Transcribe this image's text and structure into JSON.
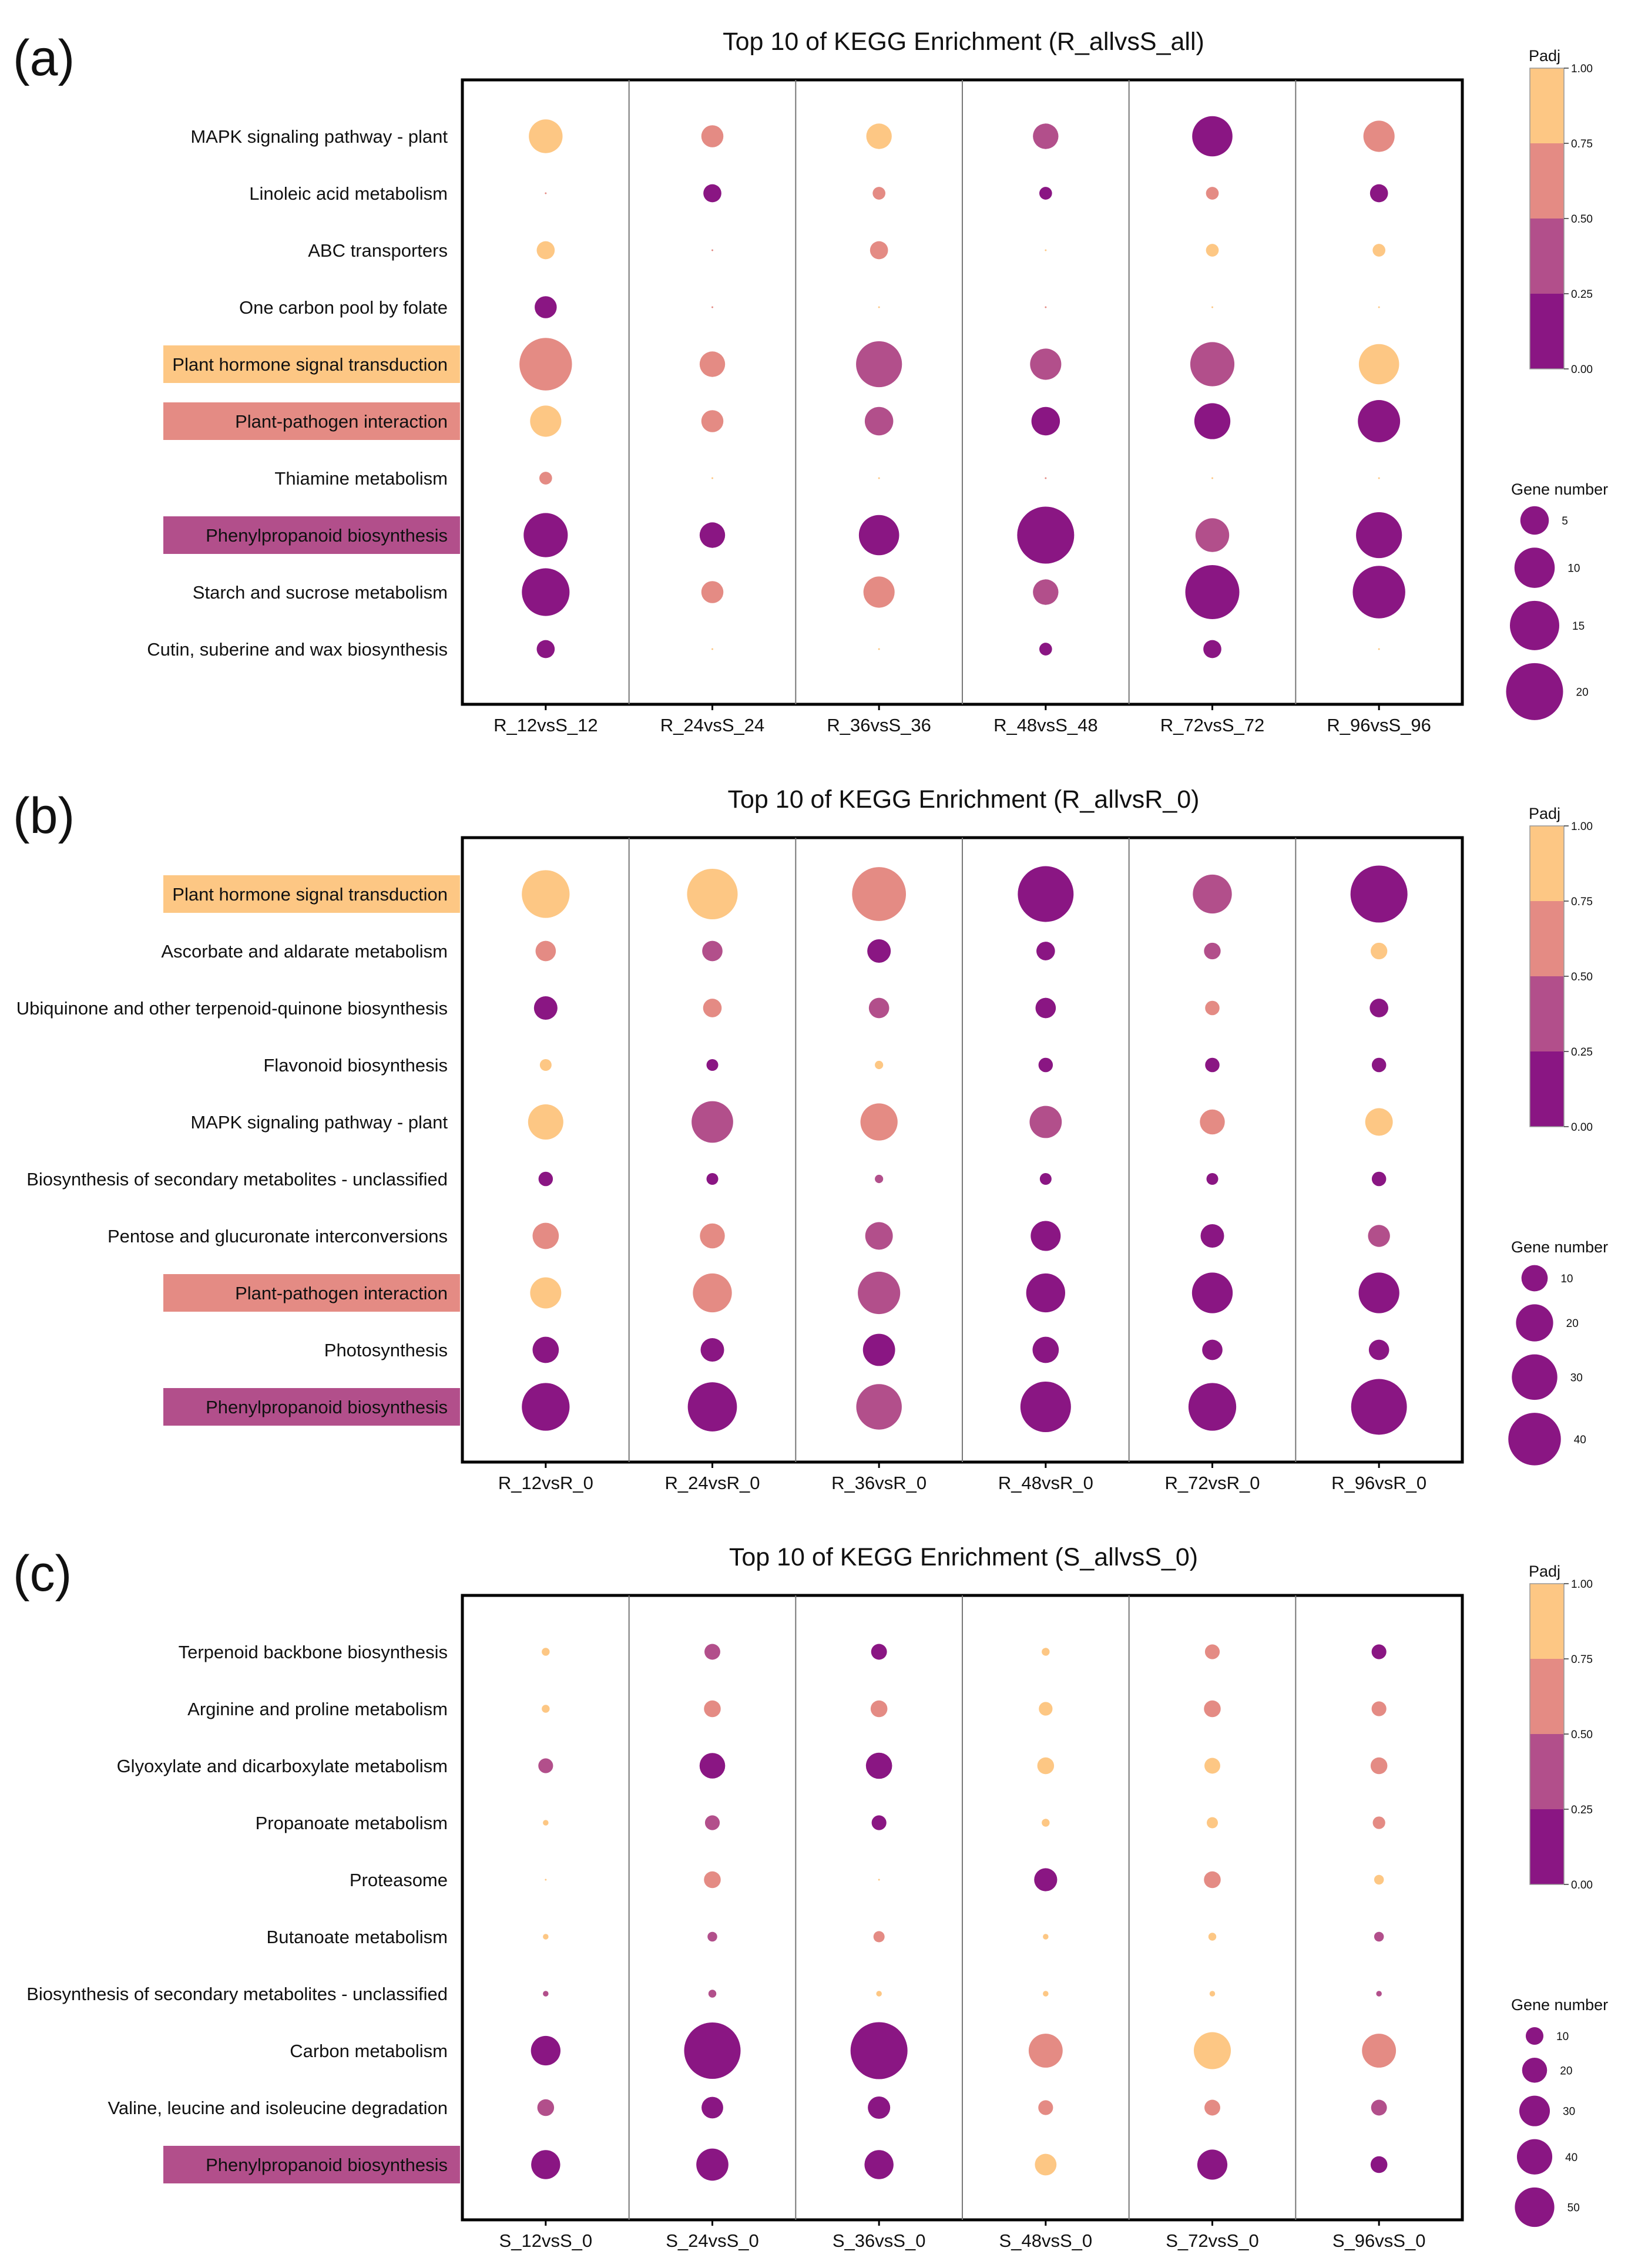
{
  "colors": {
    "c0": "#8a1683",
    "c1": "#b24f8b",
    "c2": "#e48b84",
    "c3": "#fdc784"
  },
  "colorbar": {
    "title": "Padj",
    "ticks": [
      "0.00",
      "0.25",
      "0.50",
      "0.75",
      "1.00"
    ]
  },
  "chart_data": [
    {
      "id": "a",
      "type": "scatter",
      "panel_label": "(a)",
      "title": "Top 10 of KEGG Enrichment (R_allvsS_all)",
      "x_categories": [
        "R_12vsS_12",
        "R_24vsS_24",
        "R_36vsS_36",
        "R_48vsS_48",
        "R_72vsS_72",
        "R_96vsS_96"
      ],
      "y_categories": [
        "MAPK signaling pathway - plant",
        "Linoleic acid metabolism",
        "ABC transporters",
        "One carbon pool by folate",
        "Plant hormone signal transduction",
        "Plant-pathogen interaction",
        "Thiamine metabolism",
        "Phenylpropanoid biosynthesis",
        "Starch and sucrose metabolism",
        "Cutin, suberine and wax biosynthesis"
      ],
      "highlighted_rows": {
        "Plant hormone signal transduction": "#fdc784",
        "Plant-pathogen interaction": "#e48b84",
        "Phenylpropanoid biosynthesis": "#b24f8b"
      },
      "size_legend": {
        "title": "Gene number",
        "values": [
          5,
          10,
          15,
          20
        ]
      },
      "gene_number": [
        [
          7,
          3,
          4,
          4,
          10,
          6
        ],
        [
          0,
          2,
          1,
          1,
          1,
          2
        ],
        [
          2,
          0,
          2,
          0,
          1,
          1
        ],
        [
          3,
          0,
          0,
          0,
          0,
          0
        ],
        [
          17,
          4,
          13,
          6,
          12,
          10
        ],
        [
          6,
          3,
          5,
          5,
          8,
          11
        ],
        [
          1,
          0,
          0,
          0,
          0,
          0
        ],
        [
          12,
          4,
          10,
          20,
          7,
          13
        ],
        [
          14,
          3,
          6,
          4,
          18,
          17
        ],
        [
          2,
          0,
          0,
          1,
          2,
          0
        ]
      ],
      "padj": [
        [
          0.88,
          0.6,
          0.88,
          0.3,
          0.1,
          0.6
        ],
        [
          0.6,
          0.1,
          0.6,
          0.1,
          0.6,
          0.1
        ],
        [
          0.88,
          0.6,
          0.6,
          0.88,
          0.88,
          0.88
        ],
        [
          0.1,
          0.6,
          0.88,
          0.6,
          0.88,
          0.88
        ],
        [
          0.6,
          0.6,
          0.3,
          0.3,
          0.3,
          0.88
        ],
        [
          0.88,
          0.6,
          0.3,
          0.1,
          0.1,
          0.1
        ],
        [
          0.6,
          0.88,
          0.88,
          0.6,
          0.88,
          0.88
        ],
        [
          0.1,
          0.1,
          0.1,
          0.1,
          0.3,
          0.1
        ],
        [
          0.1,
          0.6,
          0.6,
          0.3,
          0.1,
          0.1
        ],
        [
          0.1,
          0.88,
          0.88,
          0.1,
          0.1,
          0.88
        ]
      ]
    },
    {
      "id": "b",
      "type": "scatter",
      "panel_label": "(b)",
      "title": "Top 10 of KEGG Enrichment (R_allvsR_0)",
      "x_categories": [
        "R_12vsR_0",
        "R_24vsR_0",
        "R_36vsR_0",
        "R_48vsR_0",
        "R_72vsR_0",
        "R_96vsR_0"
      ],
      "y_categories": [
        "Plant hormone signal transduction",
        "Ascorbate and aldarate metabolism",
        "Ubiquinone and other terpenoid-quinone biosynthesis",
        "Flavonoid biosynthesis",
        "MAPK signaling pathway - plant",
        "Biosynthesis of secondary metabolites - unclassified",
        "Pentose and glucuronate interconversions",
        "Plant-pathogen interaction",
        "Photosynthesis",
        "Phenylpropanoid biosynthesis"
      ],
      "highlighted_rows": {
        "Plant hormone signal transduction": "#fdc784",
        "Plant-pathogen interaction": "#e48b84",
        "Phenylpropanoid biosynthesis": "#b24f8b"
      },
      "size_legend": {
        "title": "Gene number",
        "values": [
          10,
          20,
          30,
          40
        ]
      },
      "gene_number": [
        [
          33,
          37,
          42,
          45,
          22,
          47
        ],
        [
          6,
          6,
          8,
          5,
          4,
          4
        ],
        [
          8,
          5,
          6,
          6,
          3,
          5
        ],
        [
          2,
          2,
          1,
          3,
          3,
          3
        ],
        [
          18,
          25,
          20,
          15,
          9,
          11
        ],
        [
          3,
          2,
          1,
          2,
          2,
          3
        ],
        [
          10,
          9,
          11,
          13,
          8,
          7
        ],
        [
          14,
          22,
          26,
          22,
          24,
          24
        ],
        [
          10,
          8,
          15,
          10,
          6,
          6
        ],
        [
          33,
          35,
          30,
          37,
          33,
          45
        ]
      ],
      "padj": [
        [
          0.88,
          0.88,
          0.6,
          0.1,
          0.3,
          0.1
        ],
        [
          0.6,
          0.3,
          0.1,
          0.1,
          0.3,
          0.88
        ],
        [
          0.1,
          0.6,
          0.3,
          0.1,
          0.6,
          0.1
        ],
        [
          0.88,
          0.1,
          0.88,
          0.1,
          0.1,
          0.1
        ],
        [
          0.88,
          0.3,
          0.6,
          0.3,
          0.6,
          0.88
        ],
        [
          0.1,
          0.1,
          0.3,
          0.1,
          0.1,
          0.1
        ],
        [
          0.6,
          0.6,
          0.3,
          0.1,
          0.1,
          0.3
        ],
        [
          0.88,
          0.6,
          0.3,
          0.1,
          0.1,
          0.1
        ],
        [
          0.1,
          0.1,
          0.1,
          0.1,
          0.1,
          0.1
        ],
        [
          0.1,
          0.1,
          0.3,
          0.1,
          0.1,
          0.1
        ]
      ]
    },
    {
      "id": "c",
      "type": "scatter",
      "panel_label": "(c)",
      "title": "Top 10 of KEGG Enrichment (S_allvsS_0)",
      "x_categories": [
        "S_12vsS_0",
        "S_24vsS_0",
        "S_36vsS_0",
        "S_48vsS_0",
        "S_72vsS_0",
        "S_96vsS_0"
      ],
      "y_categories": [
        "Terpenoid backbone biosynthesis",
        "Arginine and proline metabolism",
        "Glyoxylate and dicarboxylate metabolism",
        "Propanoate metabolism",
        "Proteasome",
        "Butanoate metabolism",
        "Biosynthesis of secondary metabolites - unclassified",
        "Carbon metabolism",
        "Valine, leucine and isoleucine degradation",
        "Phenylpropanoid biosynthesis"
      ],
      "highlighted_rows": {
        "Phenylpropanoid biosynthesis": "#b24f8b"
      },
      "size_legend": {
        "title": "Gene number",
        "values": [
          10,
          20,
          30,
          40,
          50
        ]
      },
      "gene_number": [
        [
          2,
          8,
          8,
          2,
          7,
          7
        ],
        [
          2,
          9,
          9,
          6,
          9,
          7
        ],
        [
          7,
          21,
          22,
          9,
          8,
          9
        ],
        [
          1,
          7,
          7,
          2,
          4,
          5
        ],
        [
          0,
          9,
          0,
          17,
          9,
          3
        ],
        [
          1,
          3,
          4,
          1,
          2,
          3
        ],
        [
          1,
          2,
          1,
          1,
          1,
          1
        ],
        [
          28,
          102,
          104,
          37,
          44,
          37
        ],
        [
          9,
          15,
          16,
          7,
          8,
          8
        ],
        [
          27,
          33,
          27,
          15,
          29,
          9
        ]
      ],
      "padj": [
        [
          0.88,
          0.3,
          0.1,
          0.88,
          0.6,
          0.1
        ],
        [
          0.88,
          0.6,
          0.6,
          0.88,
          0.6,
          0.6
        ],
        [
          0.3,
          0.1,
          0.1,
          0.88,
          0.88,
          0.6
        ],
        [
          0.88,
          0.3,
          0.1,
          0.88,
          0.88,
          0.6
        ],
        [
          0.88,
          0.6,
          0.88,
          0.1,
          0.6,
          0.88
        ],
        [
          0.88,
          0.3,
          0.6,
          0.88,
          0.88,
          0.3
        ],
        [
          0.3,
          0.3,
          0.88,
          0.88,
          0.88,
          0.3
        ],
        [
          0.1,
          0.1,
          0.1,
          0.6,
          0.88,
          0.6
        ],
        [
          0.3,
          0.1,
          0.1,
          0.6,
          0.6,
          0.3
        ],
        [
          0.1,
          0.1,
          0.1,
          0.88,
          0.1,
          0.1
        ]
      ]
    }
  ]
}
